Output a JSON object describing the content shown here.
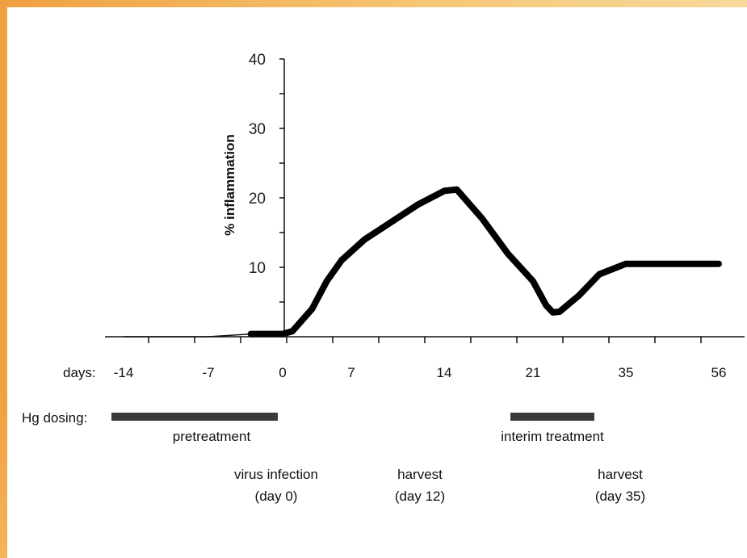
{
  "chart_data": {
    "type": "line",
    "ylabel": "% inflammation",
    "ylim": [
      0,
      40
    ],
    "yticks": [
      "10",
      "20",
      "30",
      "40"
    ],
    "x_axis_label": "days:",
    "x_tick_labels": [
      "-14",
      "-7",
      "0",
      "7",
      "14",
      "21",
      "35",
      "56"
    ],
    "series": [
      {
        "values": [
          {
            "x": -14,
            "y": 0
          },
          {
            "x": -7,
            "y": 0
          },
          {
            "x": -3,
            "y": 0.4
          },
          {
            "x": 0,
            "y": 0.4
          },
          {
            "x": 1,
            "y": 0.8
          },
          {
            "x": 3,
            "y": 4
          },
          {
            "x": 4.5,
            "y": 8
          },
          {
            "x": 6,
            "y": 11
          },
          {
            "x": 8,
            "y": 14
          },
          {
            "x": 10,
            "y": 16.5
          },
          {
            "x": 12,
            "y": 19
          },
          {
            "x": 14,
            "y": 21
          },
          {
            "x": 15,
            "y": 21.2
          },
          {
            "x": 17,
            "y": 17
          },
          {
            "x": 19,
            "y": 12
          },
          {
            "x": 21,
            "y": 8
          },
          {
            "x": 23,
            "y": 4.5
          },
          {
            "x": 24,
            "y": 3.5
          },
          {
            "x": 25,
            "y": 3.6
          },
          {
            "x": 28,
            "y": 6
          },
          {
            "x": 31,
            "y": 9
          },
          {
            "x": 35,
            "y": 10.5
          },
          {
            "x": 45,
            "y": 10.5
          },
          {
            "x": 56,
            "y": 10.5
          }
        ]
      }
    ],
    "dosing": {
      "label": "Hg dosing:",
      "bars": [
        {
          "label": "pretreatment",
          "x_start": -14,
          "x_end": 0
        },
        {
          "label": "interim treatment",
          "x_start": 21,
          "x_end": 35
        }
      ]
    },
    "annotations": [
      {
        "line1": "virus infection",
        "line2": "(day 0)",
        "x": 0
      },
      {
        "line1": "harvest",
        "line2": "(day 12)",
        "x": 12
      },
      {
        "line1": "harvest",
        "line2": "(day 35)",
        "x": 35
      }
    ]
  }
}
